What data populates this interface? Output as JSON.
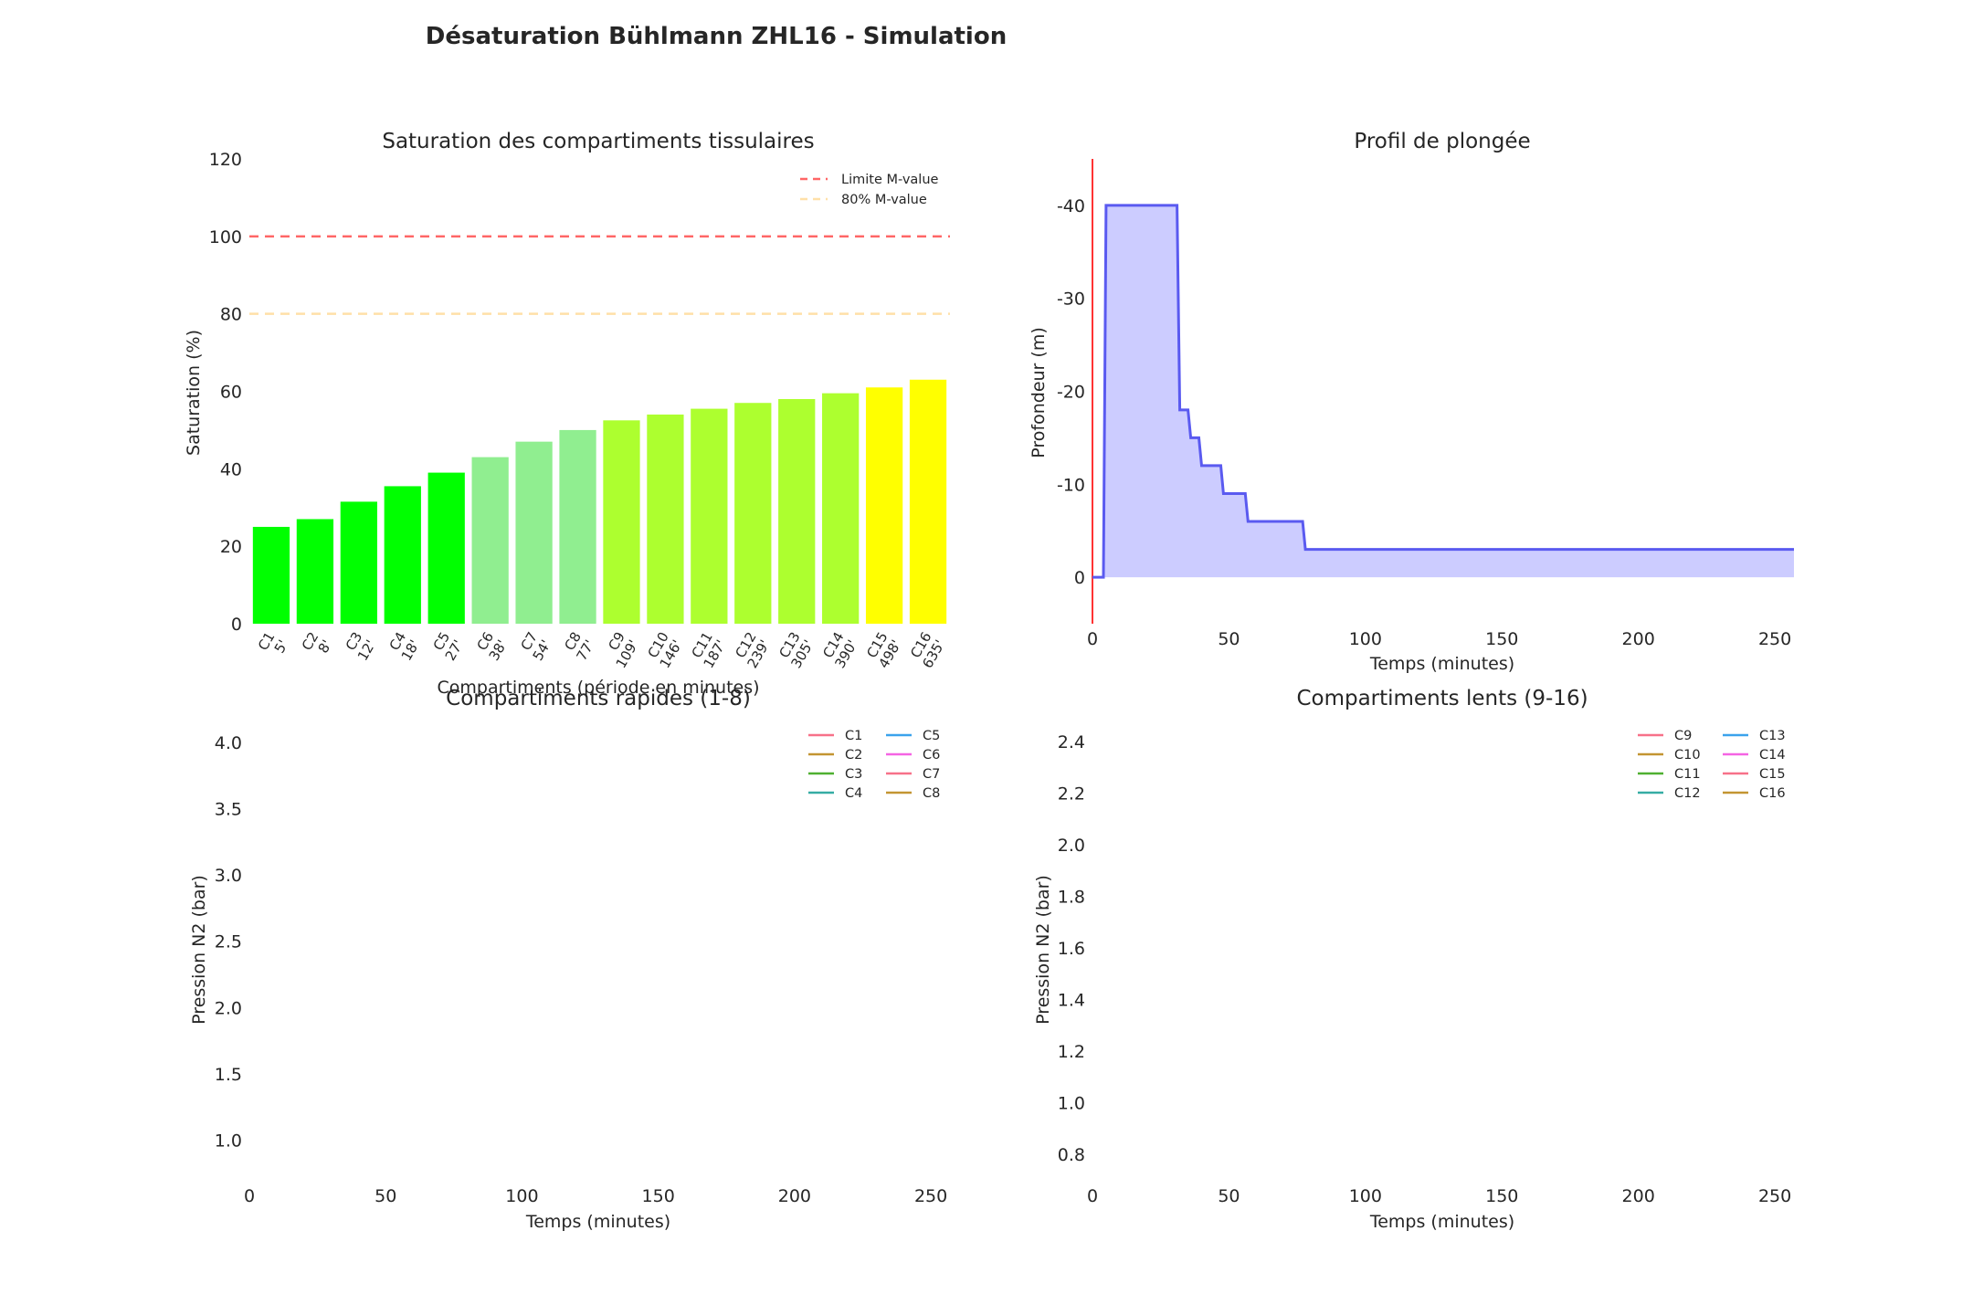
{
  "suptitle": "Désaturation Bühlmann ZHL16 - Simulation",
  "chart_data": [
    {
      "id": "saturation",
      "type": "bar",
      "title": "Saturation des compartiments tissulaires",
      "xlabel": "Compartiments (période en minutes)",
      "ylabel": "Saturation (%)",
      "ylim": [
        0,
        120
      ],
      "yticks": [
        0,
        20,
        40,
        60,
        80,
        100,
        120
      ],
      "categories": [
        "C1\n5'",
        "C2\n8'",
        "C3\n12'",
        "C4\n18'",
        "C5\n27'",
        "C6\n38'",
        "C7\n54'",
        "C8\n77'",
        "C9\n109'",
        "C10\n146'",
        "C11\n187'",
        "C12\n239'",
        "C13\n305'",
        "C14\n390'",
        "C15\n498'",
        "C16\n635'"
      ],
      "values": [
        25,
        27,
        31.5,
        35.5,
        39,
        43,
        47,
        50,
        52.5,
        54,
        55.5,
        57,
        58,
        59.5,
        61,
        63
      ],
      "bar_colors": [
        "#00ff00",
        "#00ff00",
        "#00ff00",
        "#00ff00",
        "#00ff00",
        "#90ee90",
        "#90ee90",
        "#90ee90",
        "#adff2f",
        "#adff2f",
        "#adff2f",
        "#adff2f",
        "#adff2f",
        "#adff2f",
        "#ffff00",
        "#ffff00"
      ],
      "reference_lines": [
        {
          "name": "Limite M-value",
          "y": 100,
          "color": "#ff6666",
          "dash": "dashed"
        },
        {
          "name": "80% M-value",
          "y": 80,
          "color": "#ffe0a8",
          "dash": "dashed"
        }
      ],
      "legend_position": "top-right",
      "grid": false
    },
    {
      "id": "profil",
      "type": "area",
      "title": "Profil de plongée",
      "xlabel": "Temps (minutes)",
      "ylabel": "Profondeur (m)",
      "xlim": [
        0,
        257
      ],
      "ylim": [
        5,
        -45
      ],
      "xticks": [
        0,
        50,
        100,
        150,
        200,
        250
      ],
      "yticks": [
        0,
        -10,
        -20,
        -30,
        -40
      ],
      "series": [
        {
          "color": "#5a5af0",
          "fill": "#ccccff",
          "x": [
            0,
            4,
            5,
            31,
            32,
            35,
            36,
            39,
            40,
            47,
            48,
            56,
            57,
            77,
            78,
            257
          ],
          "y": [
            0,
            0,
            -40,
            -40,
            -18,
            -18,
            -15,
            -15,
            -12,
            -12,
            -9,
            -9,
            -6,
            -6,
            -3,
            -3
          ]
        }
      ],
      "vline": {
        "x": 0,
        "color": "#ff3333"
      },
      "grid": false
    },
    {
      "id": "rapides",
      "type": "line",
      "title": "Compartiments rapides (1-8)",
      "xlabel": "Temps (minutes)",
      "ylabel": "Pression N2 (bar)",
      "xlim": [
        0,
        257
      ],
      "ylim": [
        0.7,
        4.2
      ],
      "xticks": [
        0,
        50,
        100,
        150,
        200,
        250
      ],
      "yticks": [
        1.0,
        1.5,
        2.0,
        2.5,
        3.0,
        3.5,
        4.0
      ],
      "legend_position": "top-right",
      "legend_ncol": 2,
      "series": [
        {
          "name": "C1",
          "color": "#f77189",
          "x": [],
          "y": []
        },
        {
          "name": "C2",
          "color": "#c39532",
          "x": [],
          "y": []
        },
        {
          "name": "C3",
          "color": "#4fb031",
          "x": [],
          "y": []
        },
        {
          "name": "C4",
          "color": "#35aca4",
          "x": [],
          "y": []
        },
        {
          "name": "C5",
          "color": "#3ba3ec",
          "x": [],
          "y": []
        },
        {
          "name": "C6",
          "color": "#f564e3",
          "x": [],
          "y": []
        },
        {
          "name": "C7",
          "color": "#f77189",
          "x": [],
          "y": []
        },
        {
          "name": "C8",
          "color": "#c39532",
          "x": [],
          "y": []
        }
      ],
      "grid": false
    },
    {
      "id": "lents",
      "type": "line",
      "title": "Compartiments lents (9-16)",
      "xlabel": "Temps (minutes)",
      "ylabel": "Pression N2 (bar)",
      "xlim": [
        0,
        257
      ],
      "ylim": [
        0.7,
        2.5
      ],
      "xticks": [
        0,
        50,
        100,
        150,
        200,
        250
      ],
      "yticks": [
        0.8,
        1.0,
        1.2,
        1.4,
        1.6,
        1.8,
        2.0,
        2.2,
        2.4
      ],
      "legend_position": "top-right",
      "legend_ncol": 2,
      "series": [
        {
          "name": "C9",
          "color": "#f77189",
          "x": [],
          "y": []
        },
        {
          "name": "C10",
          "color": "#c39532",
          "x": [],
          "y": []
        },
        {
          "name": "C11",
          "color": "#4fb031",
          "x": [],
          "y": []
        },
        {
          "name": "C12",
          "color": "#35aca4",
          "x": [],
          "y": []
        },
        {
          "name": "C13",
          "color": "#3ba3ec",
          "x": [],
          "y": []
        },
        {
          "name": "C14",
          "color": "#f564e3",
          "x": [],
          "y": []
        },
        {
          "name": "C15",
          "color": "#f77189",
          "x": [],
          "y": []
        },
        {
          "name": "C16",
          "color": "#c39532",
          "x": [],
          "y": []
        }
      ],
      "grid": false
    }
  ]
}
